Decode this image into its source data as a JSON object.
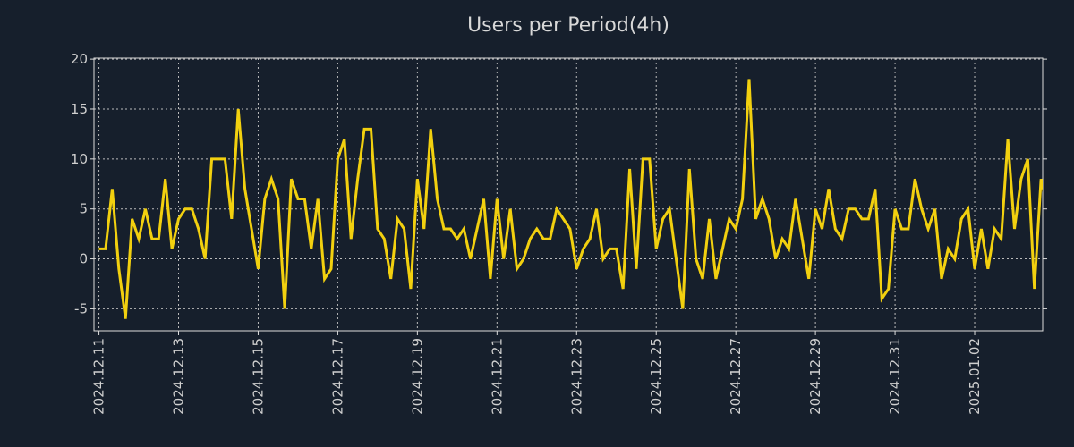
{
  "chart_data": {
    "type": "line",
    "title": "Users per Period(4h)",
    "xlabel": "",
    "ylabel": "",
    "series": [
      {
        "name": "Users",
        "color": "#f2d00f",
        "start": "2024-12-11T00:00",
        "step_hours": 4,
        "values": [
          1,
          1,
          7,
          -1,
          -6,
          4,
          2,
          5,
          2,
          2,
          8,
          1,
          4,
          5,
          5,
          3,
          0,
          10,
          10,
          10,
          4,
          15,
          7,
          3,
          -1,
          6,
          8,
          6,
          -5,
          8,
          6,
          6,
          1,
          6,
          -2,
          -1,
          10,
          12,
          2,
          8,
          13,
          13,
          3,
          2,
          -2,
          4,
          3,
          -3,
          8,
          3,
          13,
          6,
          3,
          3,
          2,
          3,
          0,
          3,
          6,
          -2,
          6,
          0,
          5,
          -1,
          0,
          2,
          3,
          2,
          2,
          5,
          4,
          3,
          -1,
          1,
          2,
          5,
          0,
          1,
          1,
          -3,
          9,
          -1,
          10,
          10,
          1,
          4,
          5,
          0,
          -5,
          9,
          0,
          -2,
          4,
          -2,
          1,
          4,
          3,
          6,
          18,
          4,
          6,
          4,
          0,
          2,
          1,
          6,
          2,
          -2,
          5,
          3,
          7,
          3,
          2,
          5,
          5,
          4,
          4,
          7,
          -4,
          -3,
          5,
          3,
          3,
          8,
          5,
          3,
          5,
          -2,
          1,
          0,
          4,
          5,
          -1,
          3,
          -1,
          3,
          2,
          12,
          3,
          8,
          10,
          -3,
          8,
          5
        ]
      }
    ],
    "xlim": [
      "2024-12-10T21:00",
      "2025-01-03T17:00"
    ],
    "ylim": [
      -7.2,
      20.1
    ],
    "yticks": [
      -5,
      0,
      5,
      10,
      15,
      20
    ],
    "xticks": [
      "2024.12.11",
      "2024.12.13",
      "2024.12.15",
      "2024.12.17",
      "2024.12.19",
      "2024.12.21",
      "2024.12.23",
      "2024.12.25",
      "2024.12.27",
      "2024.12.29",
      "2024.12.31",
      "2025.01.02"
    ],
    "grid": true,
    "background": "#161f2c",
    "grid_color": "#bbbbbb"
  }
}
